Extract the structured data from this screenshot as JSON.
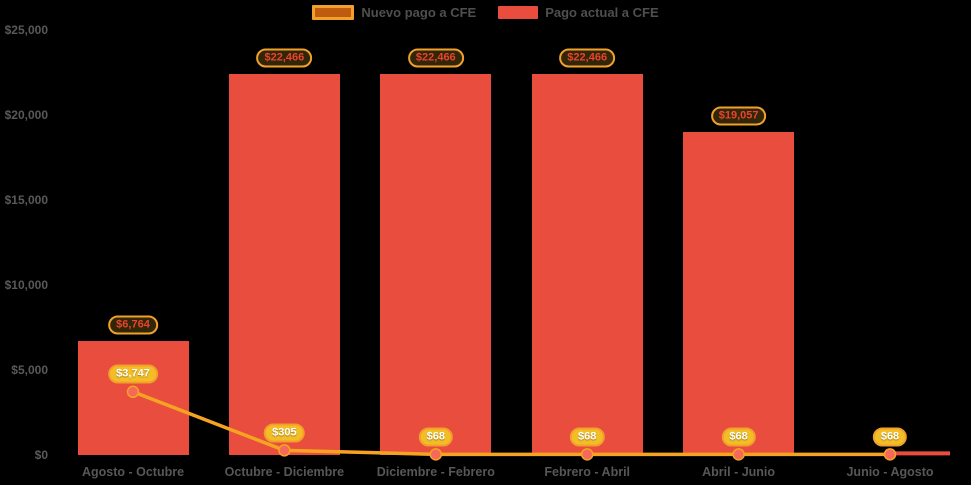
{
  "legend": {
    "items": [
      {
        "id": "nuevo-pago",
        "label": "Nuevo pago a CFE",
        "swatch_fill": "#bf5b0e",
        "swatch_border": "#f2a02c",
        "type": "line"
      },
      {
        "id": "pago-actual",
        "label": "Pago actual a CFE",
        "swatch_fill": "#e84d3d",
        "swatch_border": "",
        "type": "column"
      }
    ]
  },
  "y_axis": {
    "tick_labels": [
      "$25,000",
      "$20,000",
      "$15,000",
      "$10,000",
      "$5,000",
      "$0"
    ],
    "tick_values": [
      25000,
      20000,
      15000,
      10000,
      5000,
      0
    ]
  },
  "chart_data": {
    "type": "bar",
    "subtype": "column+line combo",
    "title": "",
    "xlabel": "",
    "ylabel": "",
    "ylim": [
      0,
      25000
    ],
    "grid": false,
    "legend_position": "top-center",
    "background": "#000000",
    "categories": [
      "Agosto - Octubre",
      "Octubre - Diciembre",
      "Diciembre - Febrero",
      "Febrero - Abril",
      "Abril - Junio",
      "Junio - Agosto"
    ],
    "series": [
      {
        "name": "Pago actual a CFE",
        "type": "column",
        "color": "#e84d3d",
        "values": [
          6764,
          22466,
          22466,
          22466,
          19057,
          68
        ],
        "data_labels": [
          "$6,764",
          "$22,466",
          "$22,466",
          "$22,466",
          "$19,057",
          ""
        ]
      },
      {
        "name": "Nuevo pago a CFE",
        "type": "line",
        "color": "#f5a321",
        "marker_color": "#f4695c",
        "values": [
          3747,
          305,
          68,
          68,
          68,
          68
        ],
        "data_labels": [
          "$3,747",
          "$305",
          "$68",
          "$68",
          "$68",
          "$68"
        ]
      }
    ],
    "colors": {
      "bar_label_text": "#e8442f",
      "pill_border": "#f2a02c",
      "pill_fill": "#f3be25",
      "axis_text": "#595959"
    }
  }
}
